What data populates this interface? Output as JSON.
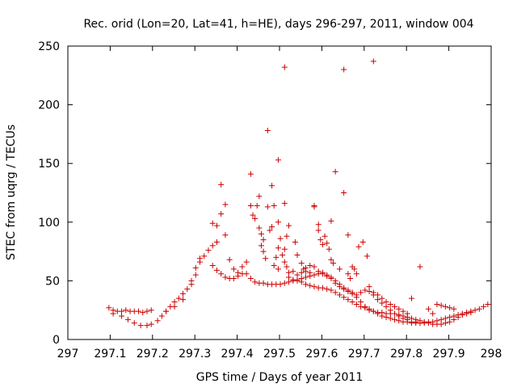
{
  "chart_data": {
    "type": "scatter",
    "title": "Rec. orid (Lon=20, Lat=41, h=HE), days 296-297, 2011, window 004",
    "xlabel": "GPS time / Days of year 2011",
    "ylabel": "STEC from uqrg / TECUs",
    "xlim": [
      297,
      298
    ],
    "ylim": [
      0,
      250
    ],
    "x_ticks": [
      "297",
      "297.1",
      "297.2",
      "297.3",
      "297.4",
      "297.5",
      "297.6",
      "297.7",
      "297.8",
      "297.9",
      "298"
    ],
    "y_ticks": [
      "0",
      "50",
      "100",
      "150",
      "200",
      "250"
    ],
    "grid": false,
    "legend": "none",
    "marker": "+",
    "color": "#cc0000",
    "series": [
      {
        "points": [
          [
            297.097,
            27
          ],
          [
            297.107,
            25
          ],
          [
            297.117,
            24
          ],
          [
            297.127,
            24
          ],
          [
            297.137,
            25
          ],
          [
            297.147,
            24
          ],
          [
            297.157,
            24
          ],
          [
            297.167,
            24
          ],
          [
            297.177,
            23
          ],
          [
            297.187,
            24
          ],
          [
            297.197,
            25
          ],
          [
            297.107,
            22
          ],
          [
            297.127,
            20
          ],
          [
            297.142,
            17
          ],
          [
            297.157,
            14
          ],
          [
            297.172,
            12
          ],
          [
            297.187,
            12
          ],
          [
            297.197,
            13
          ],
          [
            297.212,
            16
          ],
          [
            297.222,
            20
          ],
          [
            297.232,
            24
          ],
          [
            297.242,
            28
          ],
          [
            297.252,
            32
          ],
          [
            297.262,
            35
          ],
          [
            297.272,
            39
          ],
          [
            297.282,
            43
          ],
          [
            297.292,
            47
          ],
          [
            297.232,
            24
          ],
          [
            297.252,
            28
          ],
          [
            297.272,
            34
          ],
          [
            297.292,
            50
          ],
          [
            297.302,
            55
          ],
          [
            297.302,
            61
          ],
          [
            297.312,
            66
          ],
          [
            297.322,
            71
          ],
          [
            297.332,
            76
          ],
          [
            297.342,
            80
          ],
          [
            297.352,
            83
          ],
          [
            297.312,
            69
          ],
          [
            297.342,
            63
          ],
          [
            297.352,
            59
          ],
          [
            297.362,
            56
          ],
          [
            297.372,
            53
          ],
          [
            297.382,
            52
          ],
          [
            297.392,
            52
          ],
          [
            297.402,
            54
          ],
          [
            297.412,
            56
          ],
          [
            297.422,
            56
          ],
          [
            297.432,
            52
          ],
          [
            297.442,
            49
          ],
          [
            297.452,
            48
          ],
          [
            297.462,
            48
          ],
          [
            297.472,
            47
          ],
          [
            297.482,
            47
          ],
          [
            297.492,
            47
          ],
          [
            297.502,
            47
          ],
          [
            297.512,
            48
          ],
          [
            297.522,
            49
          ],
          [
            297.532,
            50
          ],
          [
            297.542,
            50
          ],
          [
            297.552,
            49
          ],
          [
            297.562,
            47
          ],
          [
            297.572,
            46
          ],
          [
            297.582,
            45
          ],
          [
            297.592,
            44
          ],
          [
            297.602,
            44
          ],
          [
            297.612,
            43
          ],
          [
            297.622,
            42
          ],
          [
            297.632,
            40
          ],
          [
            297.642,
            38
          ],
          [
            297.652,
            36
          ],
          [
            297.662,
            34
          ],
          [
            297.672,
            32
          ],
          [
            297.682,
            30
          ],
          [
            297.692,
            28
          ],
          [
            297.702,
            27
          ],
          [
            297.712,
            25
          ],
          [
            297.722,
            24
          ],
          [
            297.732,
            23
          ],
          [
            297.742,
            23
          ],
          [
            297.752,
            22
          ],
          [
            297.762,
            22
          ],
          [
            297.772,
            22
          ],
          [
            297.782,
            21
          ],
          [
            297.792,
            20
          ],
          [
            297.802,
            19
          ],
          [
            297.812,
            18
          ],
          [
            297.822,
            17
          ],
          [
            297.832,
            16
          ],
          [
            297.842,
            15
          ],
          [
            297.852,
            15
          ],
          [
            297.862,
            15
          ],
          [
            297.872,
            16
          ],
          [
            297.882,
            17
          ],
          [
            297.892,
            18
          ],
          [
            297.902,
            19
          ],
          [
            297.912,
            20
          ],
          [
            297.922,
            21
          ],
          [
            297.932,
            22
          ],
          [
            297.942,
            23
          ],
          [
            297.952,
            24
          ],
          [
            297.962,
            25
          ],
          [
            297.972,
            26
          ],
          [
            297.982,
            28
          ],
          [
            297.992,
            30
          ],
          [
            297.342,
            99
          ],
          [
            297.352,
            97
          ],
          [
            297.362,
            107
          ],
          [
            297.362,
            132
          ],
          [
            297.372,
            115
          ],
          [
            297.372,
            89
          ],
          [
            297.382,
            68
          ],
          [
            297.392,
            60
          ],
          [
            297.402,
            57
          ],
          [
            297.412,
            62
          ],
          [
            297.422,
            66
          ],
          [
            297.432,
            141
          ],
          [
            297.432,
            114
          ],
          [
            297.437,
            106
          ],
          [
            297.442,
            103
          ],
          [
            297.447,
            114
          ],
          [
            297.452,
            122
          ],
          [
            297.452,
            95
          ],
          [
            297.457,
            90
          ],
          [
            297.462,
            85
          ],
          [
            297.457,
            80
          ],
          [
            297.462,
            75
          ],
          [
            297.467,
            69
          ],
          [
            297.472,
            178
          ],
          [
            297.472,
            113
          ],
          [
            297.477,
            93
          ],
          [
            297.482,
            96
          ],
          [
            297.482,
            131
          ],
          [
            297.487,
            114
          ],
          [
            297.497,
            153
          ],
          [
            297.497,
            100
          ],
          [
            297.502,
            86
          ],
          [
            297.497,
            78
          ],
          [
            297.492,
            70
          ],
          [
            297.487,
            63
          ],
          [
            297.497,
            60
          ],
          [
            297.512,
            232
          ],
          [
            297.512,
            116
          ],
          [
            297.522,
            97
          ],
          [
            297.517,
            88
          ],
          [
            297.512,
            77
          ],
          [
            297.507,
            72
          ],
          [
            297.512,
            66
          ],
          [
            297.517,
            62
          ],
          [
            297.522,
            57
          ],
          [
            297.532,
            58
          ],
          [
            297.537,
            83
          ],
          [
            297.542,
            72
          ],
          [
            297.552,
            65
          ],
          [
            297.557,
            60
          ],
          [
            297.562,
            58
          ],
          [
            297.572,
            57
          ],
          [
            297.582,
            114
          ],
          [
            297.582,
            113
          ],
          [
            297.592,
            98
          ],
          [
            297.592,
            93
          ],
          [
            297.597,
            85
          ],
          [
            297.602,
            81
          ],
          [
            297.607,
            88
          ],
          [
            297.612,
            82
          ],
          [
            297.617,
            77
          ],
          [
            297.622,
            101
          ],
          [
            297.622,
            68
          ],
          [
            297.627,
            65
          ],
          [
            297.632,
            143
          ],
          [
            297.642,
            60
          ],
          [
            297.652,
            125
          ],
          [
            297.652,
            230
          ],
          [
            297.662,
            89
          ],
          [
            297.662,
            56
          ],
          [
            297.667,
            52
          ],
          [
            297.672,
            62
          ],
          [
            297.677,
            60
          ],
          [
            297.682,
            56
          ],
          [
            297.687,
            79
          ],
          [
            297.697,
            83
          ],
          [
            297.707,
            71
          ],
          [
            297.712,
            45
          ],
          [
            297.722,
            237
          ],
          [
            297.722,
            40
          ],
          [
            297.732,
            38
          ],
          [
            297.742,
            35
          ],
          [
            297.752,
            32
          ],
          [
            297.762,
            30
          ],
          [
            297.772,
            28
          ],
          [
            297.782,
            26
          ],
          [
            297.792,
            24
          ],
          [
            297.802,
            22
          ],
          [
            297.812,
            35
          ],
          [
            297.832,
            62
          ],
          [
            297.852,
            26
          ],
          [
            297.862,
            22
          ],
          [
            297.872,
            30
          ],
          [
            297.882,
            29
          ],
          [
            297.892,
            28
          ],
          [
            297.902,
            27
          ],
          [
            297.912,
            26
          ],
          [
            297.522,
            53
          ],
          [
            297.532,
            51
          ],
          [
            297.542,
            51
          ],
          [
            297.552,
            52
          ],
          [
            297.562,
            53
          ],
          [
            297.572,
            54
          ],
          [
            297.582,
            55
          ],
          [
            297.592,
            56
          ],
          [
            297.602,
            57
          ],
          [
            297.612,
            55
          ],
          [
            297.622,
            52
          ],
          [
            297.632,
            48
          ],
          [
            297.642,
            45
          ],
          [
            297.652,
            43
          ],
          [
            297.662,
            41
          ],
          [
            297.672,
            39
          ],
          [
            297.682,
            38
          ],
          [
            297.692,
            40
          ],
          [
            297.702,
            42
          ],
          [
            297.712,
            41
          ],
          [
            297.722,
            38
          ],
          [
            297.732,
            34
          ],
          [
            297.742,
            31
          ],
          [
            297.752,
            28
          ],
          [
            297.762,
            25
          ],
          [
            297.772,
            22
          ],
          [
            297.782,
            20
          ],
          [
            297.792,
            18
          ],
          [
            297.802,
            17
          ],
          [
            297.812,
            15
          ],
          [
            297.822,
            15
          ],
          [
            297.832,
            14
          ],
          [
            297.842,
            14
          ],
          [
            297.852,
            14
          ],
          [
            297.862,
            13
          ],
          [
            297.872,
            13
          ],
          [
            297.882,
            13
          ],
          [
            297.892,
            14
          ],
          [
            297.902,
            15
          ],
          [
            297.912,
            17
          ],
          [
            297.922,
            19
          ],
          [
            297.932,
            21
          ],
          [
            297.942,
            22
          ],
          [
            297.952,
            23
          ],
          [
            297.542,
            55
          ],
          [
            297.552,
            57
          ],
          [
            297.562,
            61
          ],
          [
            297.572,
            63
          ],
          [
            297.582,
            62
          ],
          [
            297.592,
            58
          ],
          [
            297.602,
            56
          ],
          [
            297.612,
            54
          ],
          [
            297.622,
            53
          ],
          [
            297.632,
            50
          ],
          [
            297.642,
            47
          ],
          [
            297.652,
            44
          ],
          [
            297.662,
            42
          ],
          [
            297.672,
            40
          ],
          [
            297.682,
            36
          ],
          [
            297.692,
            32
          ],
          [
            297.702,
            28
          ],
          [
            297.712,
            26
          ],
          [
            297.722,
            24
          ],
          [
            297.732,
            22
          ],
          [
            297.742,
            20
          ],
          [
            297.752,
            19
          ],
          [
            297.762,
            18
          ],
          [
            297.772,
            17
          ],
          [
            297.782,
            16
          ],
          [
            297.792,
            15
          ],
          [
            297.802,
            15
          ],
          [
            297.812,
            14
          ],
          [
            297.822,
            14
          ],
          [
            297.832,
            14
          ]
        ]
      }
    ]
  }
}
